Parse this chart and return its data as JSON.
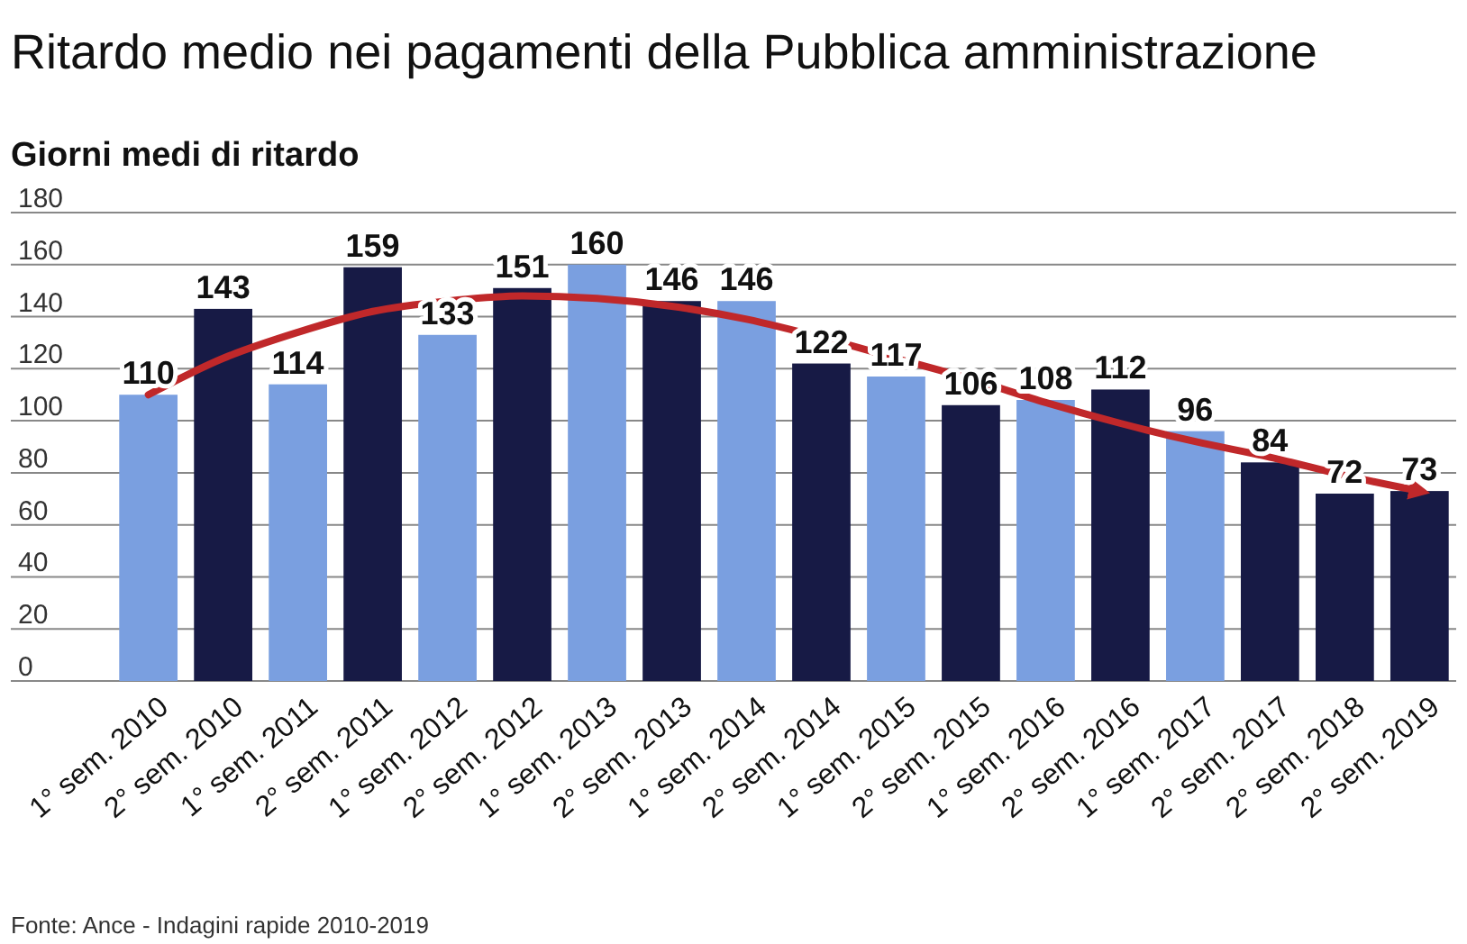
{
  "chart_data": {
    "type": "bar",
    "title": "Ritardo medio nei pagamenti della Pubblica amministrazione",
    "subtitle": "Giorni medi di ritardo",
    "categories": [
      "1° sem. 2010",
      "2° sem. 2010",
      "1° sem. 2011",
      "2° sem. 2011",
      "1° sem. 2012",
      "2° sem. 2012",
      "1° sem. 2013",
      "2° sem. 2013",
      "1° sem. 2014",
      "2° sem. 2014",
      "1° sem. 2015",
      "2° sem. 2015",
      "1° sem. 2016",
      "2° sem. 2016",
      "1° sem. 2017",
      "2° sem. 2017",
      "2° sem. 2018",
      "2° sem. 2019"
    ],
    "series": [
      {
        "values": [
          110,
          143,
          114,
          159,
          133,
          151,
          160,
          146,
          146,
          122,
          117,
          106,
          108,
          112,
          96,
          84,
          72,
          73
        ],
        "value_labels": [
          "110",
          "143",
          "114",
          "159",
          "133",
          "151",
          "160",
          "146",
          "146",
          "122",
          "117",
          "106",
          "108",
          "112",
          "96",
          "84",
          "72",
          "73"
        ],
        "colors": [
          "#7a9fe0",
          "#171a45",
          "#7a9fe0",
          "#171a45",
          "#7a9fe0",
          "#171a45",
          "#7a9fe0",
          "#171a45",
          "#7a9fe0",
          "#171a45",
          "#7a9fe0",
          "#171a45",
          "#7a9fe0",
          "#171a45",
          "#7a9fe0",
          "#171a45",
          "#171a45",
          "#171a45"
        ]
      },
      {
        "type": "line",
        "color": "#c0282a",
        "values": [
          110,
          124,
          134,
          142,
          146,
          148,
          147,
          144,
          139,
          132,
          124,
          116,
          107,
          99,
          92,
          86,
          79,
          73
        ]
      }
    ],
    "ylim": [
      0,
      180
    ],
    "yticks": [
      0,
      20,
      40,
      60,
      80,
      100,
      120,
      140,
      160,
      180
    ],
    "grid": "y",
    "marker": "none",
    "line_style": "solid",
    "annotations": [
      "Fonte: Ance - Indagini rapide 2010-2019"
    ]
  }
}
